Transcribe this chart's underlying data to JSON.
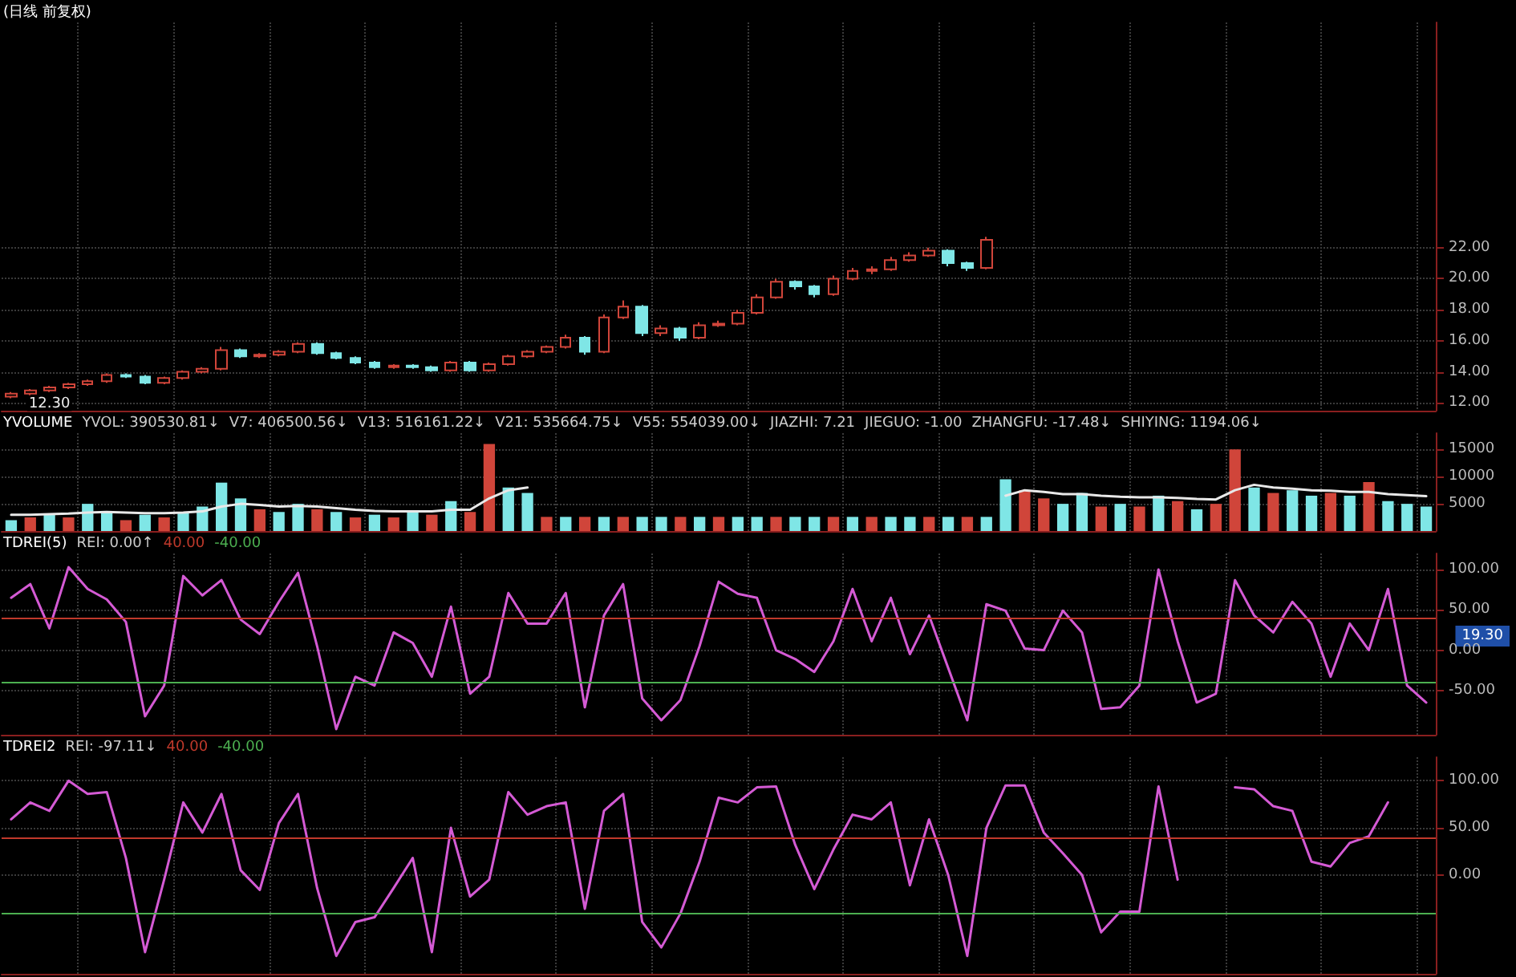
{
  "chart_data": [
    {
      "type": "candlestick",
      "title": "(日线 前复权)",
      "tick_labels": "y",
      "grid": true,
      "categories": [
        null,
        null,
        null,
        null,
        null,
        null,
        null,
        null,
        null,
        null,
        null,
        null,
        null,
        null,
        null,
        null,
        null,
        null,
        null,
        null,
        null,
        null,
        null,
        null,
        null,
        null,
        null,
        null,
        null,
        null,
        null,
        null,
        null,
        null,
        null,
        null,
        null,
        null,
        null,
        null,
        null,
        null,
        null,
        null,
        null,
        null,
        null,
        null,
        null,
        null,
        null,
        null,
        null,
        null,
        null,
        null,
        null,
        null,
        null,
        null,
        null,
        null,
        null,
        null,
        null,
        null,
        null,
        null,
        null,
        null,
        null,
        null,
        null,
        null,
        null
      ],
      "ohlc": [
        [
          12.4,
          12.7,
          12.3,
          12.6
        ],
        [
          12.6,
          12.9,
          12.5,
          12.8
        ],
        [
          12.8,
          13.1,
          12.7,
          13.0
        ],
        [
          13.0,
          13.3,
          12.9,
          13.2
        ],
        [
          13.2,
          13.5,
          13.1,
          13.4
        ],
        [
          13.4,
          13.9,
          13.3,
          13.8
        ],
        [
          13.8,
          13.9,
          13.6,
          13.7
        ],
        [
          13.7,
          13.8,
          13.2,
          13.3
        ],
        [
          13.3,
          13.7,
          13.2,
          13.6
        ],
        [
          13.6,
          14.1,
          13.5,
          14.0
        ],
        [
          14.0,
          14.3,
          13.9,
          14.2
        ],
        [
          14.2,
          15.6,
          14.1,
          15.4
        ],
        [
          15.4,
          15.5,
          14.9,
          15.0
        ],
        [
          15.0,
          15.2,
          14.9,
          15.1
        ],
        [
          15.1,
          15.4,
          15.0,
          15.3
        ],
        [
          15.3,
          15.9,
          15.2,
          15.8
        ],
        [
          15.8,
          15.9,
          15.1,
          15.2
        ],
        [
          15.2,
          15.3,
          14.8,
          14.9
        ],
        [
          14.9,
          15.0,
          14.5,
          14.6
        ],
        [
          14.6,
          14.7,
          14.2,
          14.3
        ],
        [
          14.3,
          14.5,
          14.2,
          14.4
        ],
        [
          14.4,
          14.5,
          14.2,
          14.3
        ],
        [
          14.3,
          14.4,
          14.0,
          14.1
        ],
        [
          14.1,
          14.7,
          14.0,
          14.6
        ],
        [
          14.6,
          14.7,
          14.0,
          14.1
        ],
        [
          14.1,
          14.6,
          14.0,
          14.5
        ],
        [
          14.5,
          15.1,
          14.4,
          15.0
        ],
        [
          15.0,
          15.4,
          14.9,
          15.3
        ],
        [
          15.3,
          15.7,
          15.2,
          15.6
        ],
        [
          15.6,
          16.4,
          15.5,
          16.2
        ],
        [
          16.2,
          16.3,
          15.1,
          15.3
        ],
        [
          15.3,
          17.7,
          15.2,
          17.5
        ],
        [
          17.5,
          18.6,
          17.4,
          18.2
        ],
        [
          18.2,
          18.3,
          16.3,
          16.5
        ],
        [
          16.5,
          17.0,
          16.3,
          16.8
        ],
        [
          16.8,
          16.9,
          16.0,
          16.2
        ],
        [
          16.2,
          17.2,
          16.1,
          17.0
        ],
        [
          17.0,
          17.3,
          16.9,
          17.1
        ],
        [
          17.1,
          18.0,
          17.0,
          17.8
        ],
        [
          17.8,
          19.0,
          17.7,
          18.8
        ],
        [
          18.8,
          20.0,
          18.7,
          19.8
        ],
        [
          19.8,
          19.9,
          19.3,
          19.5
        ],
        [
          19.5,
          19.6,
          18.8,
          19.0
        ],
        [
          19.0,
          20.2,
          18.9,
          20.0
        ],
        [
          20.0,
          20.7,
          19.9,
          20.5
        ],
        [
          20.5,
          20.8,
          20.3,
          20.6
        ],
        [
          20.6,
          21.4,
          20.5,
          21.2
        ],
        [
          21.2,
          21.7,
          21.1,
          21.5
        ],
        [
          21.5,
          22.0,
          21.4,
          21.8
        ],
        [
          21.8,
          21.9,
          20.8,
          21.0
        ],
        [
          21.0,
          21.1,
          20.5,
          20.7
        ],
        [
          20.7,
          22.7,
          20.6,
          22.5
        ],
        null,
        null,
        null,
        null,
        null,
        null,
        null,
        null,
        null,
        null,
        null,
        null,
        null,
        null,
        null,
        null,
        null,
        null,
        null,
        null,
        null,
        null,
        null
      ],
      "ylim": [
        11.5,
        36.5
      ],
      "yticks": [
        {
          "value": 12,
          "label": "12.00"
        },
        {
          "value": 14,
          "label": "14.00"
        },
        {
          "value": 16,
          "label": "16.00"
        },
        {
          "value": 18,
          "label": "18.00"
        },
        {
          "value": 20,
          "label": "20.00"
        },
        {
          "value": 22,
          "label": "22.00"
        }
      ],
      "annotations": [
        {
          "text": "12.30",
          "y": 12.3
        }
      ]
    },
    {
      "type": "bar",
      "title": "YVOLUME",
      "tick_labels": "y",
      "grid": true,
      "annotations": [
        "YVOL: 390530.81↓",
        "V7: 406500.56↓",
        "V13: 516161.22↓",
        "V21: 535664.75↓",
        "V55: 554039.00↓",
        "JIAZHI: 7.21",
        "JIEGUO: -1.00",
        "ZHANGFU: -17.48↓",
        "SHIYING: 1194.06↓"
      ],
      "categories": [
        null,
        null,
        null,
        null,
        null,
        null,
        null,
        null,
        null,
        null,
        null,
        null,
        null,
        null,
        null,
        null,
        null,
        null,
        null,
        null,
        null,
        null,
        null,
        null,
        null,
        null,
        null,
        null,
        null,
        null,
        null,
        null,
        null,
        null,
        null,
        null,
        null,
        null,
        null,
        null,
        null,
        null,
        null,
        null,
        null,
        null,
        null,
        null,
        null,
        null,
        null,
        null,
        null,
        null,
        null,
        null,
        null,
        null,
        null,
        null,
        null,
        null,
        null,
        null,
        null,
        null,
        null,
        null,
        null,
        null,
        null,
        null,
        null,
        null,
        null
      ],
      "series": [
        {
          "type": "bar",
          "values": [
            2000,
            2500,
            3000,
            2500,
            5000,
            3500,
            2000,
            3000,
            2500,
            3500,
            4500,
            8900,
            6000,
            4000,
            3500,
            5000,
            4000,
            3500,
            2500,
            3000,
            2500,
            3500,
            3000,
            5500,
            3500,
            16000,
            8000,
            7000,
            2600,
            2600,
            2600,
            2600,
            2600,
            2600,
            2600,
            2600,
            2600,
            2600,
            2600,
            2600,
            2600,
            2600,
            2600,
            2600,
            2600,
            2600,
            2600,
            2600,
            2600,
            2600,
            2600,
            2600,
            9500,
            7500,
            6000,
            5000,
            7000,
            4500,
            5000,
            4500,
            6500,
            5500,
            4000,
            5000,
            15000,
            8000,
            7000,
            7500,
            6500,
            7000,
            6500,
            9000,
            5500,
            5000,
            4500
          ],
          "colors": [
            "#7fe6e6",
            "#d0453a",
            "#7fe6e6",
            "#d0453a",
            "#7fe6e6",
            "#7fe6e6",
            "#d0453a",
            "#7fe6e6",
            "#d0453a",
            "#7fe6e6",
            "#7fe6e6",
            "#7fe6e6",
            "#7fe6e6",
            "#d0453a",
            "#7fe6e6",
            "#7fe6e6",
            "#d0453a",
            "#7fe6e6",
            "#d0453a",
            "#7fe6e6",
            "#d0453a",
            "#7fe6e6",
            "#d0453a",
            "#7fe6e6",
            "#d0453a",
            "#d0453a",
            "#7fe6e6",
            "#7fe6e6",
            "#d0453a",
            "#7fe6e6",
            "#d0453a",
            "#7fe6e6",
            "#d0453a",
            "#7fe6e6",
            "#7fe6e6",
            "#d0453a",
            "#7fe6e6",
            "#d0453a",
            "#7fe6e6",
            "#7fe6e6",
            "#d0453a",
            "#7fe6e6",
            "#7fe6e6",
            "#d0453a",
            "#7fe6e6",
            "#d0453a",
            "#7fe6e6",
            "#7fe6e6",
            "#d0453a",
            "#7fe6e6",
            "#d0453a",
            "#7fe6e6",
            "#7fe6e6",
            "#d0453a",
            "#d0453a",
            "#7fe6e6",
            "#7fe6e6",
            "#d0453a",
            "#7fe6e6",
            "#d0453a",
            "#7fe6e6",
            "#d0453a",
            "#7fe6e6",
            "#d0453a",
            "#d0453a",
            "#7fe6e6",
            "#d0453a",
            "#7fe6e6",
            "#7fe6e6",
            "#d0453a",
            "#7fe6e6",
            "#d0453a",
            "#7fe6e6",
            "#7fe6e6",
            "#7fe6e6"
          ]
        },
        {
          "type": "line",
          "color": "#e8e8e8",
          "values": [
            3000,
            3000,
            3100,
            3200,
            3400,
            3500,
            3400,
            3300,
            3300,
            3400,
            3600,
            4500,
            5000,
            4800,
            4500,
            4600,
            4500,
            4200,
            3900,
            3700,
            3600,
            3600,
            3600,
            3900,
            3900,
            6000,
            7500,
            8000,
            null,
            null,
            null,
            null,
            null,
            null,
            null,
            null,
            null,
            null,
            null,
            null,
            null,
            null,
            null,
            null,
            null,
            null,
            null,
            null,
            null,
            null,
            null,
            null,
            6500,
            7500,
            7200,
            6800,
            6800,
            6500,
            6300,
            6200,
            6200,
            6100,
            5900,
            5800,
            7500,
            8500,
            8000,
            7800,
            7500,
            7400,
            7200,
            7200,
            6800,
            6600,
            6400
          ]
        }
      ],
      "ylim": [
        0,
        18000
      ],
      "yticks": [
        5000,
        10000,
        15000
      ]
    },
    {
      "type": "line",
      "title": "TDREI(5)",
      "tick_labels": "y",
      "grid": true,
      "marker": "none",
      "line_style": "solid",
      "annotations": [
        "REI: 0.00↑",
        "19.30"
      ],
      "categories": [
        null,
        null,
        null,
        null,
        null,
        null,
        null,
        null,
        null,
        null,
        null,
        null,
        null,
        null,
        null,
        null,
        null,
        null,
        null,
        null,
        null,
        null,
        null,
        null,
        null,
        null,
        null,
        null,
        null,
        null,
        null,
        null,
        null,
        null,
        null,
        null,
        null,
        null,
        null,
        null,
        null,
        null,
        null,
        null,
        null,
        null,
        null,
        null,
        null,
        null,
        null,
        null,
        null,
        null,
        null,
        null,
        null,
        null,
        null,
        null,
        null,
        null,
        null,
        null,
        null,
        null,
        null,
        null,
        null,
        null,
        null,
        null,
        null,
        null,
        null
      ],
      "series": [
        {
          "color": "#d45ad4",
          "values": [
            65,
            82,
            27,
            103,
            76,
            63,
            35,
            -82,
            -44,
            92,
            68,
            87,
            38,
            20,
            60,
            96,
            5,
            -98,
            -33,
            -44,
            22,
            9,
            -33,
            54,
            -54,
            -33,
            71,
            33,
            33,
            71,
            -71,
            43,
            82,
            -60,
            -87,
            -62,
            5,
            85,
            70,
            65,
            0,
            -11,
            -27,
            11,
            76,
            11,
            65,
            -5,
            43,
            -22,
            -87,
            57,
            49,
            2,
            0,
            49,
            22,
            -73,
            -71,
            -44,
            100,
            11,
            -65,
            -54,
            87,
            43,
            22,
            60,
            33,
            -33,
            33,
            0,
            76,
            -44,
            -65
          ]
        }
      ],
      "ylim": [
        -105,
        120
      ],
      "yticks": [
        {
          "value": -50,
          "label": "-50.00"
        },
        {
          "value": 0,
          "label": "0.00"
        },
        {
          "value": 50,
          "label": "50.00"
        },
        {
          "value": 100,
          "label": "100.00"
        }
      ],
      "ref_lines": [
        {
          "axis": "y",
          "value": 40,
          "label": "40.00",
          "color": "#c0392b"
        },
        {
          "axis": "y",
          "value": -40,
          "label": "-40.00",
          "color": "#4caf50"
        }
      ]
    },
    {
      "type": "line",
      "title": "TDREI2",
      "tick_labels": "y",
      "grid": true,
      "marker": "none",
      "line_style": "solid",
      "annotations": [
        "REI: -97.11↓"
      ],
      "categories": [
        null,
        null,
        null,
        null,
        null,
        null,
        null,
        null,
        null,
        null,
        null,
        null,
        null,
        null,
        null,
        null,
        null,
        null,
        null,
        null,
        null,
        null,
        null,
        null,
        null,
        null,
        null,
        null,
        null,
        null,
        null,
        null,
        null,
        null,
        null,
        null,
        null,
        null,
        null,
        null,
        null,
        null,
        null,
        null,
        null,
        null,
        null,
        null,
        null,
        null,
        null,
        null,
        null,
        null,
        null,
        null,
        null,
        null,
        null,
        null,
        null,
        null,
        null,
        null,
        null,
        null,
        null,
        null,
        null,
        null,
        null,
        null,
        null,
        null,
        null
      ],
      "series": [
        {
          "color": "#d45ad4",
          "values": [
            59,
            77,
            68,
            100,
            86,
            88,
            18,
            -82,
            -5,
            77,
            45,
            86,
            5,
            -16,
            55,
            86,
            -14,
            -86,
            -50,
            -45,
            -14,
            18,
            -82,
            50,
            -23,
            -5,
            88,
            64,
            73,
            77,
            -36,
            68,
            86,
            -50,
            -77,
            -41,
            14,
            82,
            77,
            93,
            94,
            32,
            -15,
            27,
            64,
            59,
            77,
            -11,
            59,
            0,
            -86,
            50,
            95,
            95,
            45,
            23,
            0,
            -61,
            -39,
            -39,
            94,
            -5,
            null,
            null,
            93,
            91,
            73,
            68,
            14,
            9,
            34,
            41,
            77,
            null,
            null
          ]
        }
      ],
      "ylim": [
        -105,
        125
      ],
      "yticks": [
        {
          "value": 0,
          "label": "0.00"
        },
        {
          "value": 50,
          "label": "50.00"
        },
        {
          "value": 100,
          "label": "100.00"
        }
      ],
      "ref_lines": [
        {
          "axis": "y",
          "value": 40,
          "label": "40.00",
          "color": "#c0392b"
        },
        {
          "axis": "y",
          "value": -40,
          "label": "-40.00",
          "color": "#4caf50"
        }
      ]
    }
  ]
}
